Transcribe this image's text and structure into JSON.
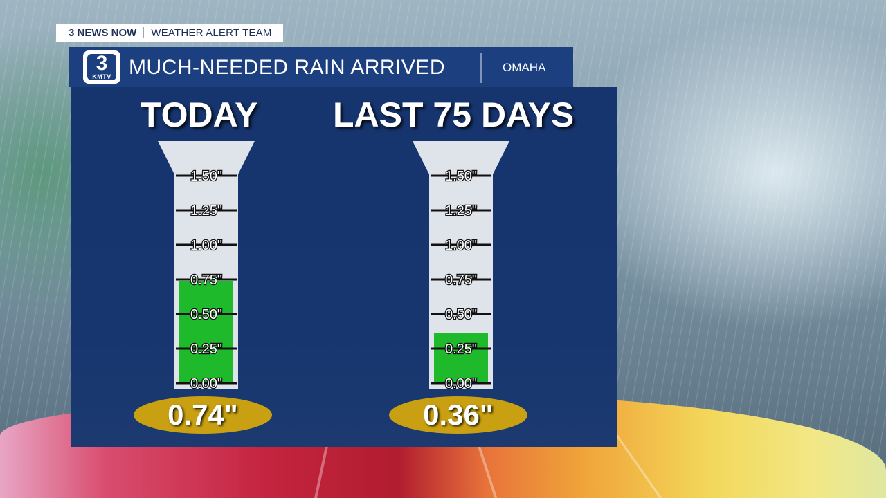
{
  "header": {
    "brand": "3 NEWS NOW",
    "team": "WEATHER ALERT TEAM",
    "title": "MUCH-NEEDED RAIN ARRIVED",
    "location": "OMAHA",
    "logo_number": "3",
    "logo_call": "KMTV"
  },
  "colors": {
    "panel": "#173670",
    "title_bar": "#1c3f80",
    "fill": "#1fb92c",
    "badge": "#c9a012",
    "tube": "#dfe3ea"
  },
  "chart_data": [
    {
      "type": "bar",
      "title": "TODAY",
      "unit": "\"",
      "ylim": [
        0,
        1.5
      ],
      "ticks": [
        "0.00\"",
        "0.25\"",
        "0.50\"",
        "0.75\"",
        "1.00\"",
        "1.25\"",
        "1.50\""
      ],
      "tick_values": [
        0,
        0.25,
        0.5,
        0.75,
        1.0,
        1.25,
        1.5
      ],
      "values": [
        0.74
      ],
      "value_label": "0.74\""
    },
    {
      "type": "bar",
      "title": "LAST 75 DAYS",
      "unit": "\"",
      "ylim": [
        0,
        1.5
      ],
      "ticks": [
        "0.00\"",
        "0.25\"",
        "0.50\"",
        "0.75\"",
        "1.00\"",
        "1.25\"",
        "1.50\""
      ],
      "tick_values": [
        0,
        0.25,
        0.5,
        0.75,
        1.0,
        1.25,
        1.5
      ],
      "values": [
        0.36
      ],
      "value_label": "0.36\""
    }
  ]
}
